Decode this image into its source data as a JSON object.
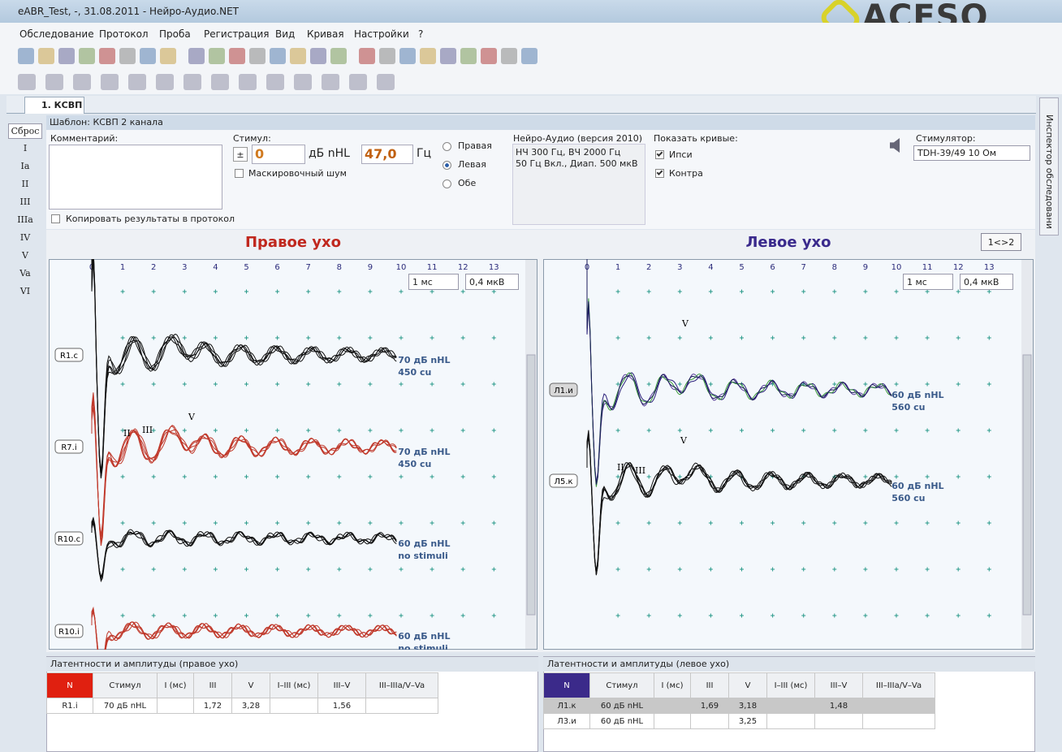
{
  "window": {
    "title": "eABR_Test, -, 31.08.2011 - Нейро-Аудио.NET",
    "logo": "ACESO"
  },
  "menu": [
    "Обследование",
    "Протокол",
    "Проба",
    "Регистрация",
    "Вид",
    "Кривая",
    "Настройки",
    "?"
  ],
  "tab": "1. КСВП",
  "side_buttons": [
    "Сброс",
    "I",
    "Ia",
    "II",
    "III",
    "IIIa",
    "IV",
    "V",
    "Va",
    "VI"
  ],
  "side_panel": "Инспектор обследовани",
  "template": "Шаблон: КСВП 2 канала",
  "form": {
    "comment_label": "Комментарий:",
    "copy_checkbox": "Копировать результаты в протокол",
    "stimulus_label": "Стимул:",
    "sign": "±",
    "level": "0",
    "level_unit": "дБ nHL",
    "freq": "47,0",
    "freq_unit": "Гц",
    "masking": "Маскировочный шум",
    "ears": [
      "Правая",
      "Левая",
      "Обе"
    ],
    "device_title": "Нейро-Аудио (версия 2010)",
    "device_lines": [
      "НЧ  300 Гц, ВЧ  2000 Гц",
      "50 Гц  Вкл., Диап. 500 мкВ"
    ],
    "show_label": "Показать кривые:",
    "show_options": [
      "Ипси",
      "Контра"
    ],
    "stimulator_label": "Стимулятор:",
    "stimulator": "TDH-39/49 10 Ом"
  },
  "swap_button": "1<>2",
  "panels": [
    {
      "title": "Правое ухо",
      "title_color": "#c0281e",
      "time_ticks": [
        0,
        1,
        2,
        3,
        4,
        5,
        6,
        7,
        8,
        9,
        10,
        11,
        12,
        13
      ],
      "time_unit": "1 мс",
      "amp_unit": "0,4 мкВ",
      "peaks": [
        "II",
        "III",
        "V"
      ],
      "traces": [
        {
          "label": "R1.c",
          "note": [
            "70 дБ nHL",
            "450 cu"
          ],
          "color": "#111111"
        },
        {
          "label": "R7.i",
          "note": [
            "70 дБ nHL",
            "450 cu"
          ],
          "color": "#c0392b"
        },
        {
          "label": "R10.c",
          "note": [
            "60 дБ nHL",
            "no stimuli"
          ],
          "color": "#111111"
        },
        {
          "label": "R10.i",
          "note": [
            "60 дБ nHL",
            "no stimuli"
          ],
          "color": "#c0392b"
        }
      ]
    },
    {
      "title": "Левое ухо",
      "title_color": "#3a2a8c",
      "time_ticks": [
        0,
        1,
        2,
        3,
        4,
        5,
        6,
        7,
        8,
        9,
        10,
        11,
        12,
        13
      ],
      "time_unit": "1 мс",
      "amp_unit": "0,4 мкВ",
      "peaks": [
        "V",
        "V",
        "II",
        "III"
      ],
      "traces": [
        {
          "label": "Л1.и",
          "note": [
            "60 дБ nHL",
            "560 cu"
          ],
          "color": "#2a1f7a"
        },
        {
          "label": "Л5.к",
          "note": [
            "60 дБ nHL",
            "560 cu"
          ],
          "color": "#111111"
        }
      ]
    }
  ],
  "tables": [
    {
      "title": "Латентности и амплитуды (правое ухо)",
      "headers": [
        "N",
        "Стимул",
        "I (мс)",
        "III",
        "V",
        "I–III (мс)",
        "III–V",
        "III–IIIa/V–Va"
      ],
      "rows": [
        [
          "R1.i",
          "70 дБ nHL",
          null,
          "1,72",
          "3,28",
          null,
          "1,56",
          null
        ]
      ]
    },
    {
      "title": "Латентности и амплитуды (левое ухо)",
      "headers": [
        "N",
        "Стимул",
        "I (мс)",
        "III",
        "V",
        "I–III (мс)",
        "III–V",
        "III–IIIa/V–Va"
      ],
      "rows": [
        [
          "Л1.к",
          "60 дБ nHL",
          null,
          "1,69",
          "3,18",
          null,
          "1,48",
          null
        ],
        [
          "Л3.и",
          "60 дБ nHL",
          null,
          null,
          "3,25",
          null,
          null,
          null
        ]
      ]
    }
  ]
}
